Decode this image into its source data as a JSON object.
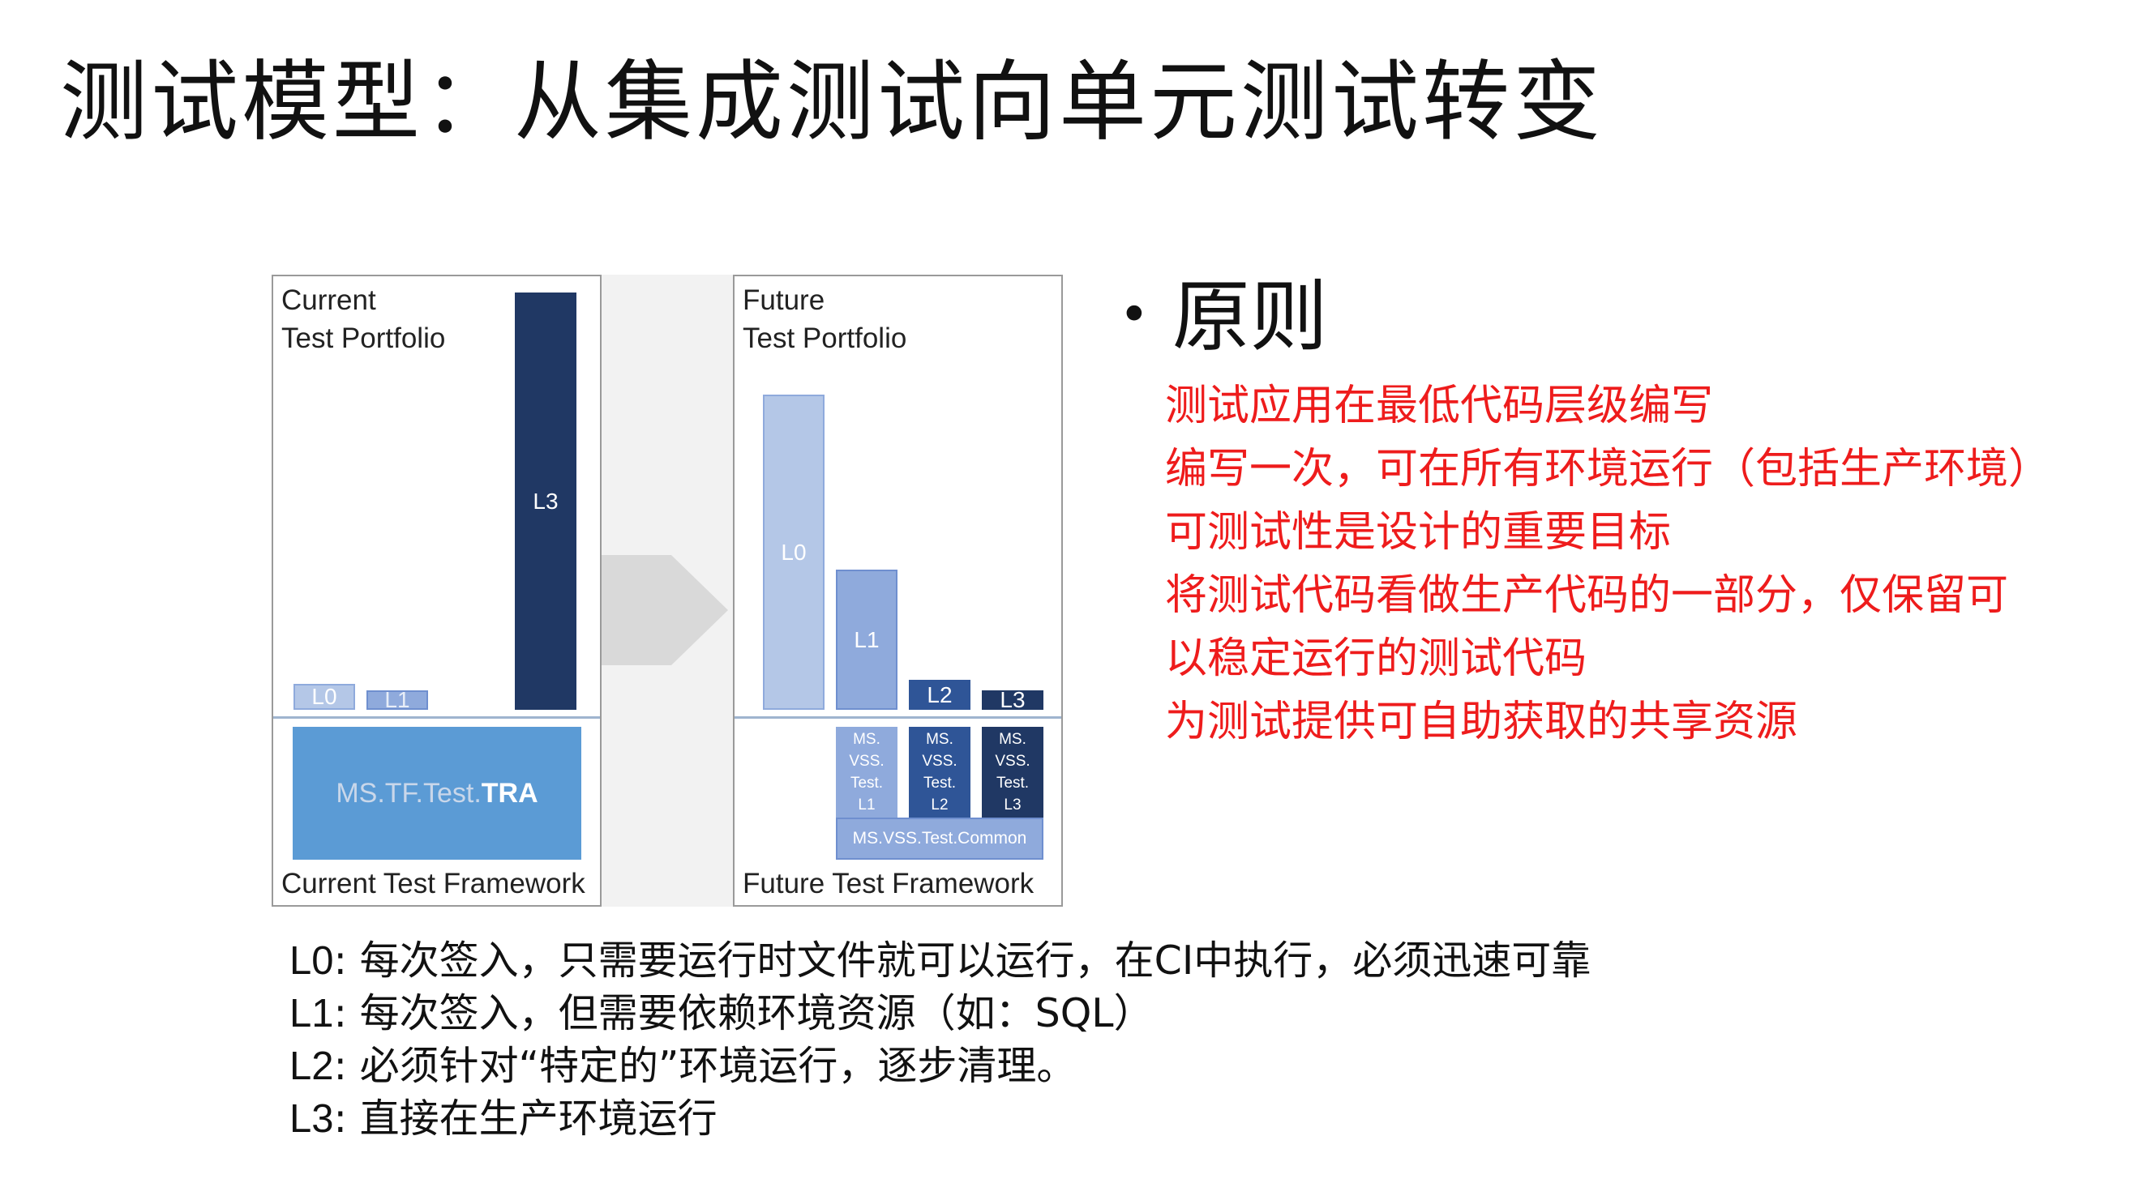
{
  "title": "测试模型：从集成测试向单元测试转变",
  "current": {
    "portfolio_line1": "Current",
    "portfolio_line2": "Test Portfolio",
    "bars": [
      {
        "label": "L0",
        "level": 0.06
      },
      {
        "label": "L1",
        "level": 0.04
      },
      {
        "label": "L3",
        "level": 0.98
      }
    ],
    "framework_box": {
      "prefix": "MS.TF.Test.",
      "bold": "TRA"
    },
    "framework_label": "Current Test Framework"
  },
  "future": {
    "portfolio_line1": "Future",
    "portfolio_line2": "Test Portfolio",
    "bars": [
      {
        "label": "L0",
        "level": 0.74
      },
      {
        "label": "L1",
        "level": 0.33
      },
      {
        "label": "L2",
        "level": 0.07
      },
      {
        "label": "L3",
        "level": 0.045
      }
    ],
    "modules": [
      {
        "lines": [
          "MS.",
          "VSS.",
          "Test.",
          "L1"
        ]
      },
      {
        "lines": [
          "MS.",
          "VSS.",
          "Test.",
          "L2"
        ]
      },
      {
        "lines": [
          "MS.",
          "VSS.",
          "Test.",
          "L3"
        ]
      }
    ],
    "common_module": "MS.VSS.Test.Common",
    "framework_label": "Future Test Framework"
  },
  "colors": {
    "L0": "#b4c7e7",
    "L1": "#8faadc",
    "L2": "#2f5597",
    "L3": "#203864",
    "tra_box": "#5b9bd5",
    "arrow": "#d9d9d9",
    "principle_text": "#ee1c1c"
  },
  "principles": {
    "bullet": "•",
    "heading": "原则",
    "lines": [
      "测试应用在最低代码层级编写",
      "编写一次，可在所有环境运行（包括生产环境）",
      "可测试性是设计的重要目标",
      "将测试代码看做生产代码的一部分，仅保留可",
      "以稳定运行的测试代码",
      "为测试提供可自助获取的共享资源"
    ]
  },
  "legend": [
    {
      "key": "L0",
      "text": ": 每次签入，只需要运行时文件就可以运行，在CI中执行，必须迅速可靠"
    },
    {
      "key": "L1",
      "text": ": 每次签入，但需要依赖环境资源（如：SQL）"
    },
    {
      "key": "L2",
      "text": ": 必须针对“特定的”环境运行，逐步清理。"
    },
    {
      "key": "L3",
      "text": ": 直接在生产环境运行"
    }
  ]
}
